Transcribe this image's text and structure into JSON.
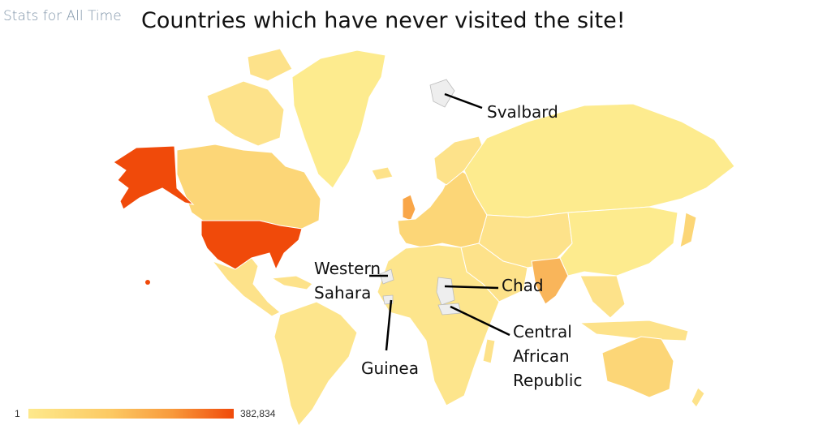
{
  "header": {
    "stats_label": "Stats for All Time"
  },
  "title": "Countries which have never visited the site!",
  "annotations": {
    "svalbard": "Svalbard",
    "western_sahara": "Western Sahara",
    "chad": "Chad",
    "central_african_republic": "Central African Republic",
    "guinea": "Guinea"
  },
  "legend": {
    "min": "1",
    "max": "382,834"
  },
  "colors": {
    "low": "#fde98c",
    "mid": "#fcc963",
    "high": "#f04a0a",
    "no_data": "#eeeeee",
    "border": "#ffffff"
  }
}
